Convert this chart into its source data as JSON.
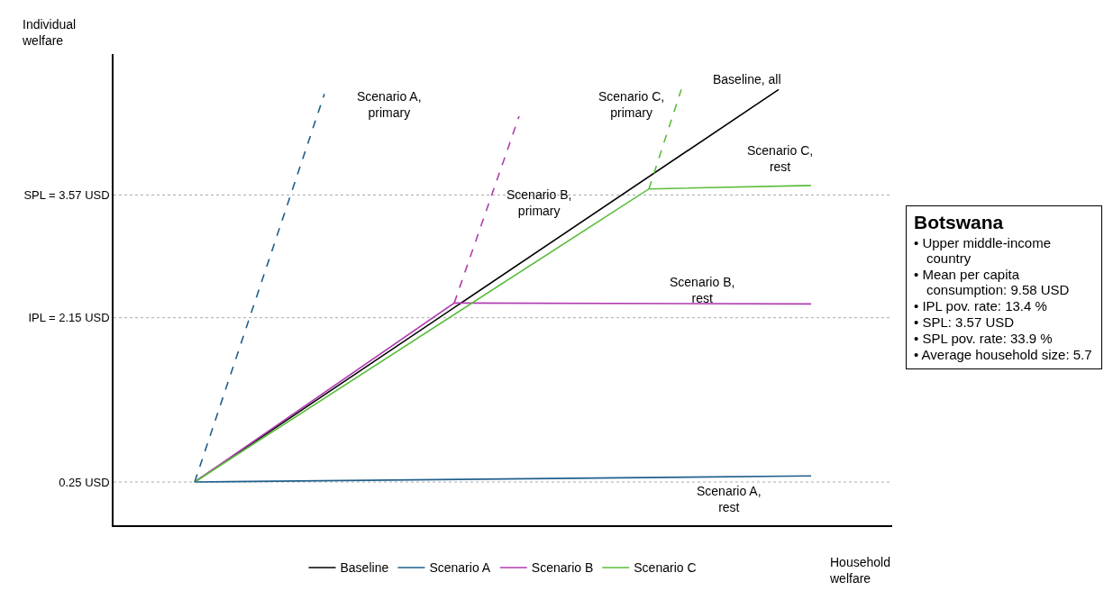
{
  "chart_data": {
    "type": "line",
    "subtitle": "Botswana",
    "xlabel": "Household welfare",
    "ylabel": "Individual welfare",
    "categories": [
      null,
      null,
      null,
      null,
      null,
      null,
      null,
      null,
      null,
      null,
      null,
      null,
      null,
      null,
      null,
      null,
      null,
      null,
      null,
      null,
      null,
      null,
      null,
      null
    ],
    "ylim": [
      -0.25,
      5.2
    ],
    "yticks": [
      {
        "value": 0.25,
        "label": "0.25 USD"
      },
      {
        "value": 2.15,
        "label": "IPL = 2.15 USD"
      },
      {
        "value": 3.57,
        "label": "SPL = 3.57 USD"
      }
    ],
    "grid": false,
    "legend": "bottom",
    "marker": "none",
    "series": [
      {
        "name": "Baseline",
        "color": "#000000",
        "values": [
          null,
          null,
          0.25,
          null,
          null,
          null,
          null,
          null,
          null,
          null,
          null,
          null,
          null,
          null,
          null,
          null,
          null,
          null,
          null,
          null,
          4.79,
          null,
          null,
          null
        ]
      },
      {
        "name": "Scenario A",
        "color": "#1f5f8b",
        "values": [
          null,
          null,
          0.25,
          null,
          null,
          null,
          null,
          null,
          null,
          null,
          null,
          null,
          null,
          null,
          null,
          null,
          null,
          null,
          null,
          null,
          null,
          0.32,
          null,
          null
        ]
      },
      {
        "name": "Scenario B",
        "color": "#b03cb0",
        "values": [
          null,
          null,
          0.25,
          null,
          null,
          null,
          null,
          null,
          null,
          null,
          2.32,
          null,
          null,
          null,
          null,
          null,
          null,
          null,
          null,
          null,
          null,
          2.31,
          null,
          null
        ]
      },
      {
        "name": "Scenario C",
        "color": "#5cbd3c",
        "values": [
          null,
          null,
          0.25,
          null,
          null,
          null,
          null,
          null,
          null,
          null,
          null,
          null,
          null,
          null,
          null,
          null,
          3.64,
          null,
          null,
          null,
          null,
          3.68,
          null,
          null
        ]
      },
      {
        "color": "#1f5f8b",
        "line_style": "dashed",
        "values": [
          null,
          null,
          0.25,
          null,
          null,
          null,
          4.74,
          null,
          null,
          null,
          null,
          null,
          null,
          null,
          null,
          null,
          null,
          null,
          null,
          null,
          null,
          null,
          null,
          null
        ]
      },
      {
        "color": "#b03cb0",
        "line_style": "dashed",
        "values": [
          null,
          null,
          null,
          null,
          null,
          null,
          null,
          null,
          null,
          null,
          2.32,
          null,
          4.48,
          null,
          null,
          null,
          null,
          null,
          null,
          null,
          null,
          null,
          null,
          null
        ]
      },
      {
        "color": "#5cbd3c",
        "line_style": "dashed",
        "values": [
          null,
          null,
          null,
          null,
          null,
          null,
          null,
          null,
          null,
          null,
          null,
          null,
          null,
          null,
          null,
          null,
          3.64,
          4.79,
          null,
          null,
          null,
          null,
          null,
          null
        ]
      }
    ],
    "ref_lines": [
      {
        "axis": "y",
        "value": 0.25,
        "color": "#aaaaaa",
        "line_style": "dotted"
      },
      {
        "axis": "y",
        "value": 2.15,
        "color": "#aaaaaa",
        "line_style": "dotted"
      },
      {
        "axis": "y",
        "value": 3.57,
        "color": "#aaaaaa",
        "line_style": "dotted"
      }
    ],
    "annotations": [
      "Scenario A,\nprimary",
      "Scenario B,\nprimary",
      "Scenario C,\nprimary",
      "Baseline, all",
      "Scenario C,\nrest",
      "Scenario B,\nrest",
      "Scenario A,\nrest",
      "• Upper middle-income country",
      "• Mean per capita consumption: 9.58 USD",
      "• IPL pov. rate: 13.4 %",
      "• SPL: 3.57 USD",
      "• SPL pov. rate: 33.9 %",
      "• Average household size: 5.7"
    ]
  }
}
